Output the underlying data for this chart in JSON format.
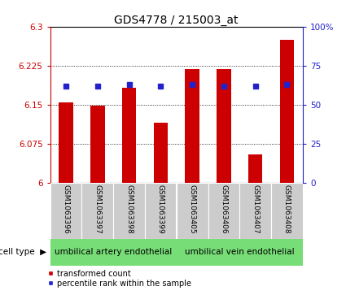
{
  "title": "GDS4778 / 215003_at",
  "samples": [
    "GSM1063396",
    "GSM1063397",
    "GSM1063398",
    "GSM1063399",
    "GSM1063405",
    "GSM1063406",
    "GSM1063407",
    "GSM1063408"
  ],
  "red_values": [
    6.155,
    6.149,
    6.182,
    6.115,
    6.218,
    6.218,
    6.055,
    6.275
  ],
  "blue_values": [
    62,
    62,
    63,
    62,
    63,
    62,
    62,
    63
  ],
  "ylim_left": [
    6.0,
    6.3
  ],
  "ylim_right": [
    0,
    100
  ],
  "yticks_left": [
    6.0,
    6.075,
    6.15,
    6.225,
    6.3
  ],
  "ytick_labels_left": [
    "6",
    "6.075",
    "6.15",
    "6.225",
    "6.3"
  ],
  "yticks_right": [
    0,
    25,
    50,
    75,
    100
  ],
  "ytick_labels_right": [
    "0",
    "25",
    "50",
    "75",
    "100%"
  ],
  "group1_label": "umbilical artery endothelial",
  "group2_label": "umbilical vein endothelial",
  "group_color": "#77DD77",
  "cell_type_label": "cell type",
  "legend_red": "transformed count",
  "legend_blue": "percentile rank within the sample",
  "bar_color": "#cc0000",
  "dot_color": "#2222cc",
  "background_color": "#ffffff",
  "sample_bg_color": "#cccccc",
  "bar_width": 0.45
}
